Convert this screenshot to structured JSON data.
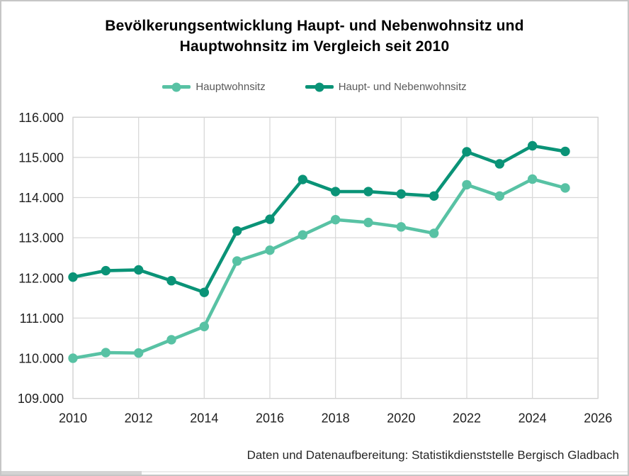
{
  "header": {
    "title_line1": "Bevölkerungsentwicklung Haupt- und Nebenwohnsitz und",
    "title_line2": "Hauptwohnsitz im Vergleich seit 2010"
  },
  "footer": {
    "text": "Daten und Datenaufbereitung: Statistikdienststelle Bergisch Gladbach"
  },
  "chart_data": {
    "type": "line",
    "title": "Bevölkerungsentwicklung Haupt- und Nebenwohnsitz und Hauptwohnsitz im Vergleich seit 2010",
    "x": [
      2010,
      2011,
      2012,
      2013,
      2014,
      2015,
      2016,
      2017,
      2018,
      2019,
      2020,
      2021,
      2022,
      2023,
      2024,
      2025
    ],
    "series": [
      {
        "name": "Hauptwohnsitz",
        "color": "#58C2A4",
        "values": [
          110000,
          110140,
          110130,
          110460,
          110790,
          112420,
          112690,
          113070,
          113450,
          113380,
          113270,
          113110,
          114320,
          114040,
          114460,
          114240
        ]
      },
      {
        "name": "Haupt- und Nebenwohnsitz",
        "color": "#0A9377",
        "values": [
          112020,
          112180,
          112200,
          111930,
          111640,
          113170,
          113460,
          114450,
          114150,
          114150,
          114090,
          114040,
          115140,
          114840,
          115290,
          115150
        ]
      }
    ],
    "xlim": [
      2010,
      2026
    ],
    "ylim": [
      109000,
      116000
    ],
    "x_ticks": {
      "values": [
        2010,
        2012,
        2014,
        2016,
        2018,
        2020,
        2022,
        2024,
        2026
      ],
      "labels": [
        "2010",
        "2012",
        "2014",
        "2016",
        "2018",
        "2020",
        "2022",
        "2024",
        "2026"
      ]
    },
    "y_ticks": {
      "values": [
        109000,
        110000,
        111000,
        112000,
        113000,
        114000,
        115000,
        116000
      ],
      "labels": [
        "109.000",
        "110.000",
        "111.000",
        "112.000",
        "113.000",
        "114.000",
        "115.000",
        "116.000"
      ]
    },
    "grid": true,
    "gridline_color": "#d9d9d9",
    "plot_border_color": "#d2d2d2",
    "legend_position": "top",
    "xlabel": "",
    "ylabel": ""
  }
}
